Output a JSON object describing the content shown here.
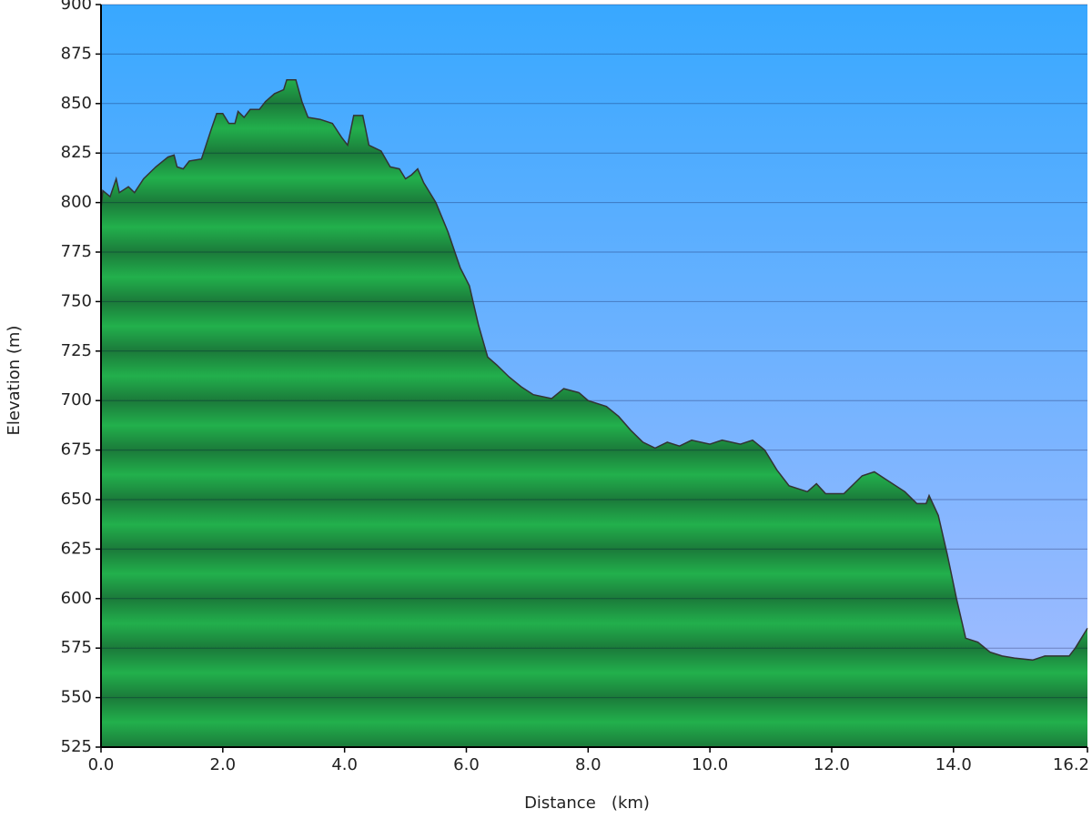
{
  "chart_data": {
    "type": "area",
    "y_label": "Elevation (m)",
    "x_label": "Distance   (km)",
    "x": [
      0.0,
      0.03,
      0.15,
      0.25,
      0.3,
      0.45,
      0.55,
      0.7,
      0.9,
      1.1,
      1.2,
      1.25,
      1.35,
      1.45,
      1.65,
      1.8,
      1.9,
      2.0,
      2.1,
      2.2,
      2.25,
      2.35,
      2.45,
      2.6,
      2.7,
      2.85,
      3.0,
      3.05,
      3.2,
      3.3,
      3.4,
      3.6,
      3.8,
      3.95,
      4.05,
      4.15,
      4.3,
      4.4,
      4.6,
      4.75,
      4.9,
      5.0,
      5.1,
      5.2,
      5.3,
      5.5,
      5.7,
      5.9,
      6.05,
      6.2,
      6.35,
      6.5,
      6.7,
      6.9,
      7.1,
      7.4,
      7.6,
      7.85,
      8.0,
      8.3,
      8.5,
      8.7,
      8.9,
      9.1,
      9.3,
      9.5,
      9.7,
      10.0,
      10.2,
      10.5,
      10.7,
      10.9,
      11.1,
      11.3,
      11.6,
      11.75,
      11.9,
      12.2,
      12.5,
      12.7,
      12.9,
      13.2,
      13.4,
      13.55,
      13.6,
      13.75,
      13.9,
      14.05,
      14.2,
      14.4,
      14.6,
      14.8,
      15.0,
      15.3,
      15.5,
      15.9,
      16.0,
      16.1,
      16.2
    ],
    "values": [
      797,
      806,
      803,
      812,
      805,
      808,
      805,
      812,
      818,
      823,
      824,
      818,
      817,
      821,
      822,
      836,
      845,
      845,
      840,
      840,
      846,
      843,
      847,
      847,
      851,
      855,
      857,
      862,
      862,
      851,
      843,
      842,
      840,
      833,
      829,
      844,
      844,
      829,
      826,
      818,
      817,
      812,
      814,
      817,
      810,
      800,
      785,
      767,
      758,
      738,
      722,
      718,
      712,
      707,
      703,
      701,
      706,
      704,
      700,
      697,
      692,
      685,
      679,
      676,
      679,
      677,
      680,
      678,
      680,
      678,
      680,
      675,
      665,
      657,
      654,
      658,
      653,
      653,
      662,
      664,
      660,
      654,
      648,
      648,
      652,
      642,
      622,
      600,
      580,
      578,
      573,
      571,
      570,
      569,
      571,
      571,
      575,
      580,
      585
    ],
    "color": "#22a84a",
    "line_color": "#333333",
    "xlim": [
      0,
      16.2
    ],
    "ylim": [
      525,
      900
    ],
    "xticks": [
      {
        "value": 0,
        "label": "0.0"
      },
      {
        "value": 2,
        "label": "2.0"
      },
      {
        "value": 4,
        "label": "4.0"
      },
      {
        "value": 6,
        "label": "6.0"
      },
      {
        "value": 8,
        "label": "8.0"
      },
      {
        "value": 10,
        "label": "10.0"
      },
      {
        "value": 12,
        "label": "12.0"
      },
      {
        "value": 14,
        "label": "14.0"
      },
      16.2
    ],
    "yticks": [
      525,
      550,
      575,
      600,
      625,
      650,
      675,
      700,
      725,
      750,
      775,
      800,
      825,
      850,
      875,
      900
    ],
    "grid": true
  }
}
